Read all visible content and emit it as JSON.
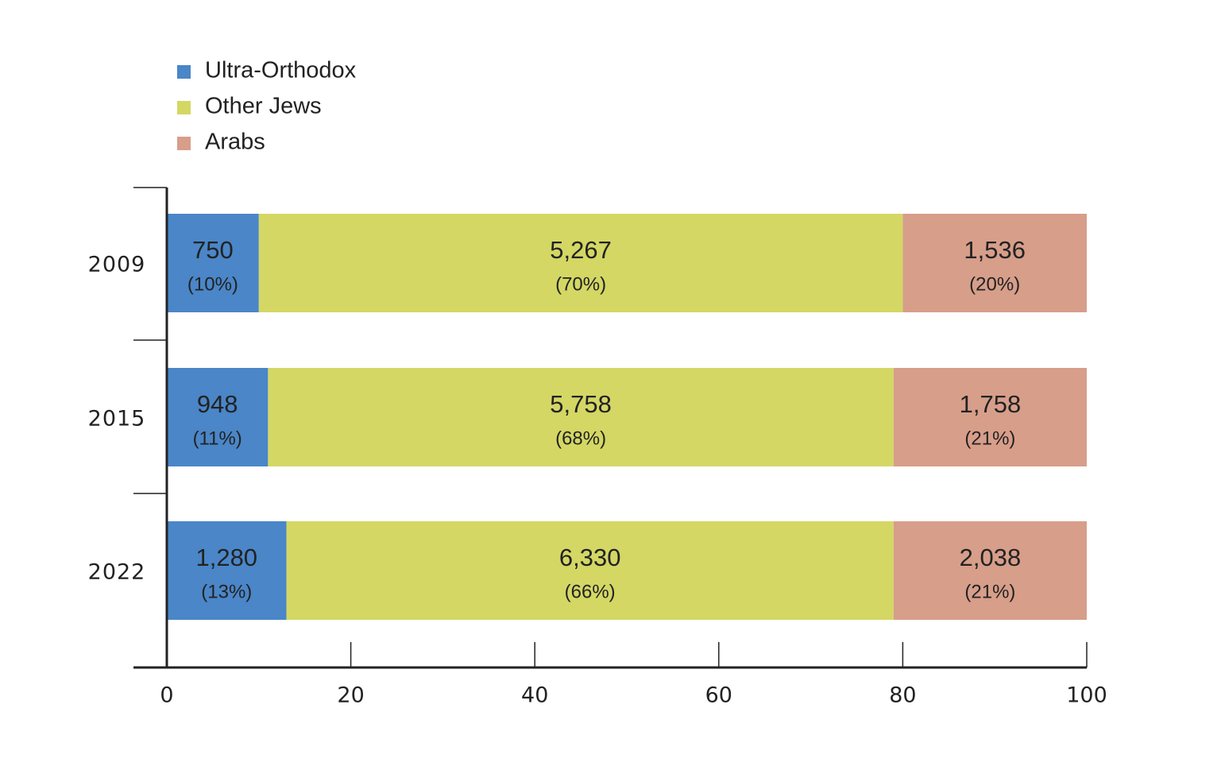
{
  "chart_data": {
    "type": "bar",
    "orientation": "horizontal",
    "stacked": true,
    "categories": [
      "2009",
      "2015",
      "2022"
    ],
    "series": [
      {
        "name": "Ultra-Orthodox",
        "color": "#4a86c8",
        "values": [
          10,
          11,
          13
        ],
        "counts": [
          "750",
          "948",
          "1,280"
        ],
        "shares": [
          "(10%)",
          "(11%)",
          "(13%)"
        ]
      },
      {
        "name": "Other Jews",
        "color": "#d4d764",
        "values": [
          70,
          68,
          66
        ],
        "counts": [
          "5,267",
          "5,758",
          "6,330"
        ],
        "shares": [
          "(70%)",
          "(68%)",
          "(66%)"
        ]
      },
      {
        "name": "Arabs",
        "color": "#d79e8a",
        "values": [
          20,
          21,
          21
        ],
        "counts": [
          "1,536",
          "1,758",
          "2,038"
        ],
        "shares": [
          "(20%)",
          "(21%)",
          "(21%)"
        ]
      }
    ],
    "xticks": [
      "0",
      "20",
      "40",
      "60",
      "80",
      "100"
    ],
    "xlim": [
      0,
      100
    ],
    "title": "",
    "xlabel": "",
    "ylabel": "",
    "grid": false,
    "legend": "top-left"
  }
}
